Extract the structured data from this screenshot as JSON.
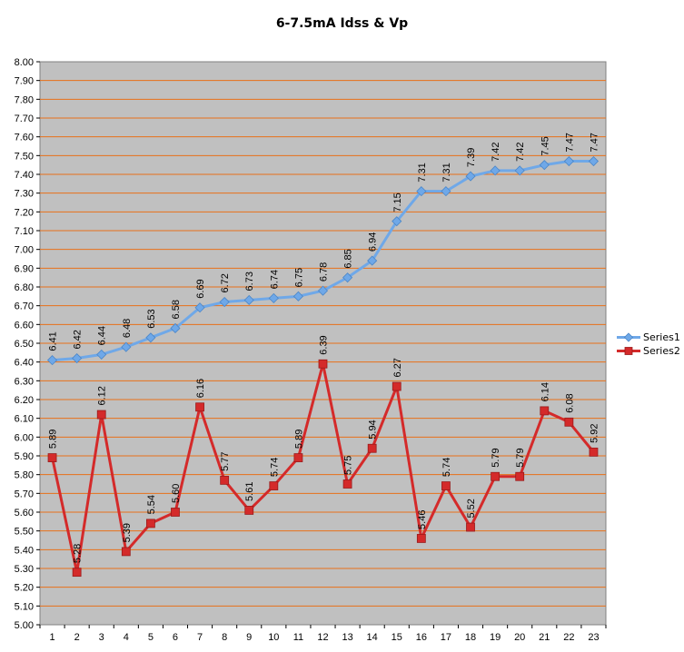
{
  "chart_data": {
    "type": "line",
    "title": "6-7.5mA Idss & Vp",
    "xlabel": "",
    "ylabel": "",
    "categories": [
      "1",
      "2",
      "3",
      "4",
      "5",
      "6",
      "7",
      "8",
      "9",
      "10",
      "11",
      "12",
      "13",
      "14",
      "15",
      "16",
      "17",
      "18",
      "19",
      "20",
      "21",
      "22",
      "23"
    ],
    "ylim": [
      5.0,
      8.0
    ],
    "yticks": [
      "5.00",
      "5.10",
      "5.20",
      "5.30",
      "5.40",
      "5.50",
      "5.60",
      "5.70",
      "5.80",
      "5.90",
      "6.00",
      "6.10",
      "6.20",
      "6.30",
      "6.40",
      "6.50",
      "6.60",
      "6.70",
      "6.80",
      "6.90",
      "7.00",
      "7.10",
      "7.20",
      "7.30",
      "7.40",
      "7.50",
      "7.60",
      "7.70",
      "7.80",
      "7.90",
      "8.00"
    ],
    "grid": true,
    "legend_position": "right",
    "plot_background": "#c0c0c0",
    "grid_color": "#e8701a",
    "series": [
      {
        "name": "Series1",
        "color": "#6fa8e8",
        "marker": "diamond",
        "values": [
          6.41,
          6.42,
          6.44,
          6.48,
          6.53,
          6.58,
          6.69,
          6.72,
          6.73,
          6.74,
          6.75,
          6.78,
          6.85,
          6.94,
          7.15,
          7.31,
          7.31,
          7.39,
          7.42,
          7.42,
          7.45,
          7.47,
          7.47
        ],
        "labels": [
          "6.41",
          "6.42",
          "6.44",
          "6.48",
          "6.53",
          "6.58",
          "6.69",
          "6.72",
          "6.73",
          "6.74",
          "6.75",
          "6.78",
          "6.85",
          "6.94",
          "7.15",
          "7.31",
          "7.31",
          "7.39",
          "7.42",
          "7.42",
          "7.45",
          "7.47",
          "7.47"
        ]
      },
      {
        "name": "Series2",
        "color": "#d42a2a",
        "marker": "square",
        "values": [
          5.89,
          5.28,
          6.12,
          5.39,
          5.54,
          5.6,
          6.16,
          5.77,
          5.61,
          5.74,
          5.89,
          6.39,
          5.75,
          5.94,
          6.27,
          5.46,
          5.74,
          5.52,
          5.79,
          5.79,
          6.14,
          6.08,
          5.92
        ],
        "labels": [
          "5.89",
          "5.28",
          "6.12",
          "5.39",
          "5.54",
          "5.60",
          "6.16",
          "5.77",
          "5.61",
          "5.74",
          "5.89",
          "6.39",
          "5.75",
          "5.94",
          "6.27",
          "5.46",
          "5.74",
          "5.52",
          "5.79",
          "5.79",
          "6.14",
          "6.08",
          "5.92"
        ]
      }
    ]
  }
}
